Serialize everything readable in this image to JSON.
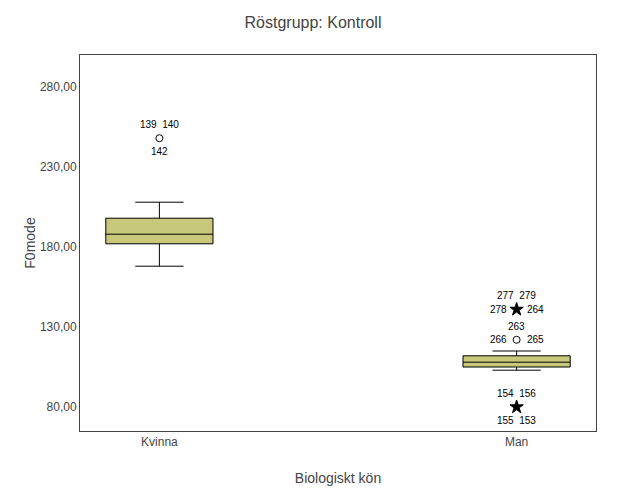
{
  "chart_data": {
    "type": "box",
    "title": "Röstgrupp: Kontroll",
    "xlabel": "Biologiskt kön",
    "ylabel": "F0mode",
    "categories": [
      "Kvinna",
      "Man"
    ],
    "color": "#c8c87a",
    "boxes": [
      {
        "q1": 182,
        "median": 188,
        "q3": 198,
        "whisker_low": 168,
        "whisker_high": 208,
        "outliers": [
          {
            "y": 248,
            "marker": "circle",
            "labels": [
              "139  140",
              "142"
            ]
          }
        ]
      },
      {
        "q1": 105,
        "median": 108,
        "q3": 112,
        "whisker_low": 103,
        "whisker_high": 115,
        "outliers": [
          {
            "y": 141,
            "marker": "star",
            "labels": [
              "277  279",
              "278",
              "264"
            ]
          },
          {
            "y": 122,
            "marker": "circle",
            "labels": [
              "263",
              "266",
              "265"
            ]
          },
          {
            "y": 80,
            "marker": "star",
            "labels": [
              "154  156",
              "155  153"
            ]
          }
        ]
      }
    ],
    "ylim": [
      65,
      300
    ],
    "yticks": [
      {
        "value": 80,
        "label": "80,00"
      },
      {
        "value": 130,
        "label": "130,00"
      },
      {
        "value": 180,
        "label": "180,00"
      },
      {
        "value": 230,
        "label": "230,00"
      },
      {
        "value": 280,
        "label": "280,00"
      }
    ],
    "grid": false
  }
}
